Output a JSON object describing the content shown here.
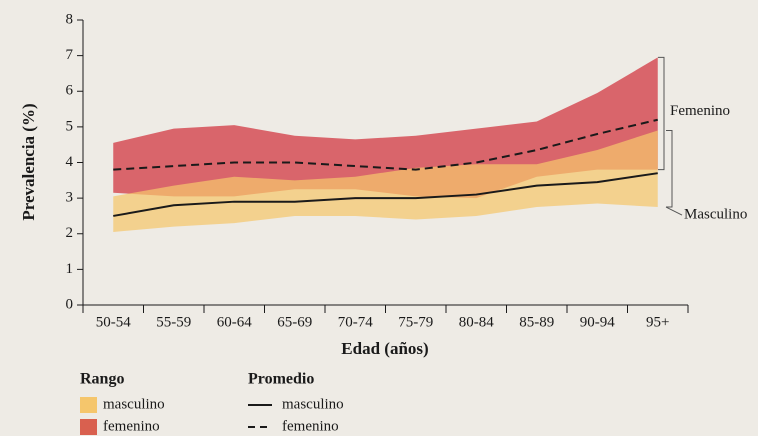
{
  "chart_data": {
    "type": "line",
    "xlabel": "Edad (años)",
    "ylabel": "Prevalencia (%)",
    "categories": [
      "50-54",
      "55-59",
      "60-64",
      "65-69",
      "70-74",
      "75-79",
      "80-84",
      "85-89",
      "90-94",
      "95+"
    ],
    "ylim": [
      0,
      8
    ],
    "yticks": [
      0,
      1,
      2,
      3,
      4,
      5,
      6,
      7,
      8
    ],
    "legend": {
      "range_title": "Rango",
      "mean_title": "Promedio"
    },
    "ranges": [
      {
        "name": "femenino",
        "color": "#d9656b",
        "low": [
          3.15,
          3.05,
          3.05,
          3.25,
          3.25,
          3.05,
          3.0,
          3.6,
          3.8,
          3.8
        ],
        "high": [
          4.55,
          4.95,
          5.05,
          4.75,
          4.65,
          4.75,
          4.95,
          5.15,
          5.95,
          6.95
        ]
      },
      {
        "name": "masculino",
        "color": "#f5c66c",
        "low": [
          2.05,
          2.2,
          2.3,
          2.5,
          2.5,
          2.4,
          2.5,
          2.75,
          2.85,
          2.75
        ],
        "high": [
          3.05,
          3.35,
          3.6,
          3.5,
          3.6,
          3.85,
          3.95,
          3.95,
          4.35,
          4.9
        ]
      }
    ],
    "means": [
      {
        "name": "masculino",
        "color": "#1a1a1a",
        "dashed": false,
        "values": [
          2.5,
          2.8,
          2.9,
          2.9,
          3.0,
          3.0,
          3.1,
          3.35,
          3.45,
          3.7
        ]
      },
      {
        "name": "femenino",
        "color": "#1a1a1a",
        "dashed": true,
        "values": [
          3.8,
          3.9,
          4.0,
          4.0,
          3.9,
          3.8,
          4.0,
          4.35,
          4.8,
          5.2
        ]
      }
    ],
    "annotations": [
      "Femenino",
      "Masculino"
    ]
  }
}
